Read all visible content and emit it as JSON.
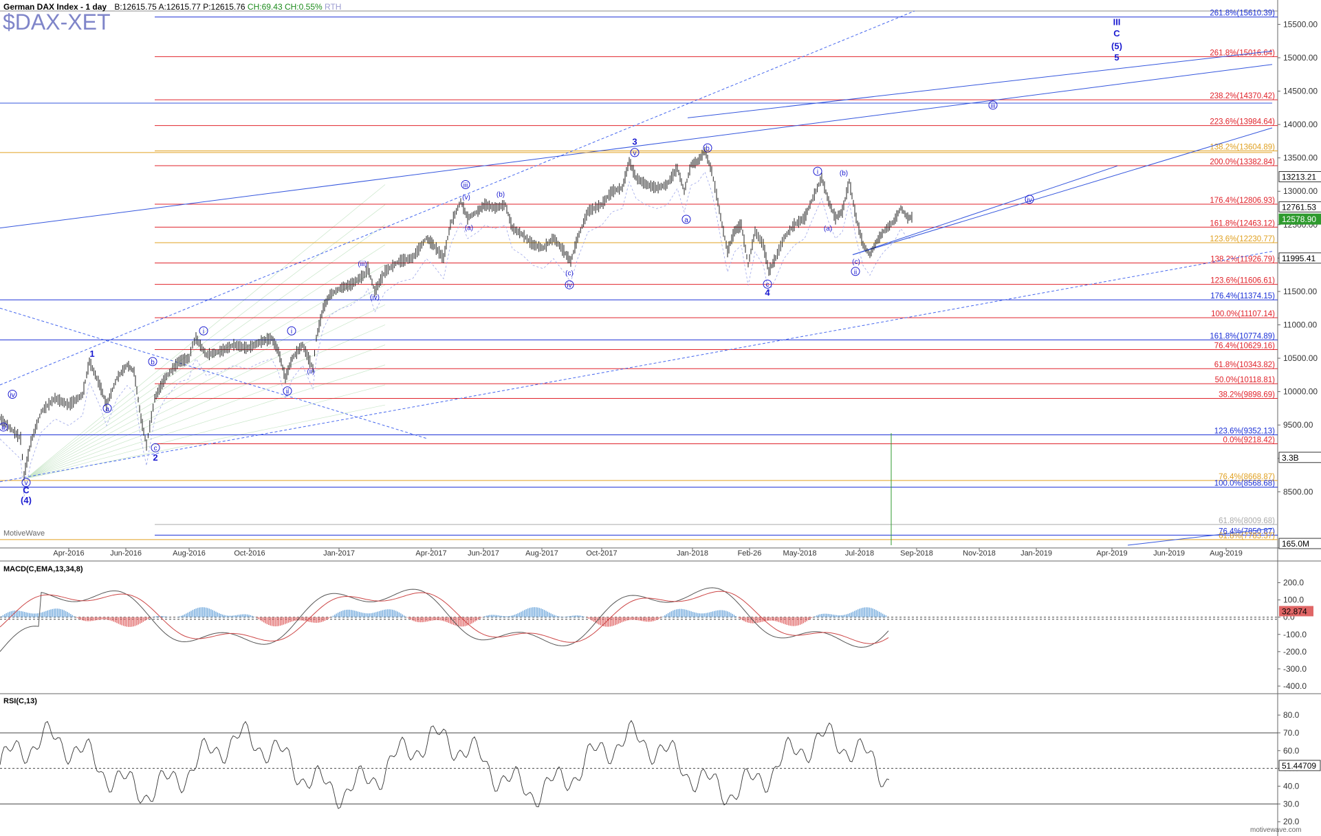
{
  "header": {
    "title": "German DAX Index - 1 day",
    "symbol": "$DAX-XET",
    "quote": {
      "bid": "B:12615.75",
      "ask": "A:12615.77",
      "price": "P:12615.76",
      "change": "CH:69.43",
      "change_pct": "CH:0.55%",
      "session": "RTH"
    },
    "watermark": "MotiveWave",
    "footer": "motivewave.com"
  },
  "colors": {
    "fib_red": "#e0222a",
    "fib_blue": "#1a2fd6",
    "fib_orange": "#e0a020",
    "fib_gray": "#aaaaaa",
    "wave_label": "#1a1ad0",
    "price_bar": "#222222",
    "macd_pos": "#6fa8dc",
    "macd_neg": "#e06666",
    "volume": "#2e9a2e"
  },
  "chart_data": [
    {
      "type": "line",
      "name": "price",
      "title": "German DAX Index - 1 day",
      "x_axis_labels": [
        "Apr-2016",
        "Jun-2016",
        "Aug-2016",
        "Oct-2016",
        "Jan-2017",
        "Apr-2017",
        "Jun-2017",
        "Aug-2017",
        "Oct-2017",
        "Jan-2018",
        "Feb-26",
        "May-2018",
        "Jul-2018",
        "Sep-2018",
        "Nov-2018",
        "Jan-2019",
        "Apr-2019",
        "Jun-2019",
        "Aug-2019"
      ],
      "y_ticks": [
        8500,
        9000,
        9500,
        10000,
        10500,
        11000,
        11500,
        12000,
        12500,
        13000,
        13500,
        14000,
        14500,
        15000,
        15500
      ],
      "y_tick_labels": [
        "8500.00",
        "9000.00",
        "9500.00",
        "10000.00",
        "10500.00",
        "11000.00",
        "11500.00",
        "12000.00",
        "12500.00",
        "13000.00",
        "13500.00",
        "14000.00",
        "14500.00",
        "15000.00",
        "15500.00"
      ],
      "ylim": [
        7700,
        15700
      ],
      "price_path": [
        [
          0,
          9600
        ],
        [
          30,
          9300
        ],
        [
          35,
          8740
        ],
        [
          45,
          9250
        ],
        [
          60,
          9700
        ],
        [
          80,
          9900
        ],
        [
          100,
          9800
        ],
        [
          120,
          9950
        ],
        [
          130,
          10450
        ],
        [
          145,
          10100
        ],
        [
          155,
          9800
        ],
        [
          170,
          10200
        ],
        [
          185,
          10400
        ],
        [
          195,
          10300
        ],
        [
          205,
          9600
        ],
        [
          213,
          9200
        ],
        [
          225,
          9900
        ],
        [
          240,
          10200
        ],
        [
          260,
          10450
        ],
        [
          275,
          10500
        ],
        [
          280,
          10700
        ],
        [
          285,
          10800
        ],
        [
          300,
          10550
        ],
        [
          320,
          10600
        ],
        [
          340,
          10700
        ],
        [
          360,
          10650
        ],
        [
          380,
          10750
        ],
        [
          395,
          10800
        ],
        [
          405,
          10600
        ],
        [
          415,
          10200
        ],
        [
          425,
          10500
        ],
        [
          440,
          10700
        ],
        [
          455,
          10350
        ],
        [
          460,
          10800
        ],
        [
          470,
          11250
        ],
        [
          480,
          11450
        ],
        [
          495,
          11550
        ],
        [
          510,
          11600
        ],
        [
          530,
          11750
        ],
        [
          535,
          11850
        ],
        [
          545,
          11500
        ],
        [
          560,
          11800
        ],
        [
          580,
          11950
        ],
        [
          600,
          12000
        ],
        [
          620,
          12300
        ],
        [
          630,
          12200
        ],
        [
          645,
          12000
        ],
        [
          655,
          12500
        ],
        [
          670,
          12850
        ],
        [
          680,
          12600
        ],
        [
          695,
          12700
        ],
        [
          705,
          12800
        ],
        [
          720,
          12750
        ],
        [
          735,
          12800
        ],
        [
          745,
          12450
        ],
        [
          760,
          12350
        ],
        [
          775,
          12200
        ],
        [
          790,
          12150
        ],
        [
          805,
          12300
        ],
        [
          820,
          12100
        ],
        [
          830,
          11950
        ],
        [
          840,
          12300
        ],
        [
          855,
          12700
        ],
        [
          875,
          12800
        ],
        [
          890,
          13000
        ],
        [
          905,
          13050
        ],
        [
          915,
          13450
        ],
        [
          925,
          13200
        ],
        [
          940,
          13100
        ],
        [
          955,
          13050
        ],
        [
          970,
          13100
        ],
        [
          985,
          13350
        ],
        [
          995,
          13000
        ],
        [
          1005,
          13400
        ],
        [
          1015,
          13450
        ],
        [
          1025,
          13600
        ],
        [
          1035,
          13300
        ],
        [
          1042,
          12950
        ],
        [
          1050,
          12500
        ],
        [
          1058,
          12100
        ],
        [
          1068,
          12400
        ],
        [
          1078,
          12500
        ],
        [
          1088,
          11900
        ],
        [
          1098,
          12400
        ],
        [
          1110,
          12200
        ],
        [
          1118,
          11800
        ],
        [
          1128,
          12000
        ],
        [
          1140,
          12300
        ],
        [
          1155,
          12500
        ],
        [
          1170,
          12600
        ],
        [
          1180,
          12850
        ],
        [
          1195,
          13200
        ],
        [
          1205,
          12850
        ],
        [
          1215,
          12600
        ],
        [
          1225,
          12700
        ],
        [
          1235,
          13150
        ],
        [
          1245,
          12600
        ],
        [
          1255,
          12200
        ],
        [
          1265,
          12050
        ],
        [
          1275,
          12250
        ],
        [
          1285,
          12400
        ],
        [
          1300,
          12550
        ],
        [
          1310,
          12750
        ],
        [
          1320,
          12600
        ],
        [
          1328,
          12615.76
        ]
      ],
      "fib_levels": [
        {
          "label": "261.8%(15610.39)",
          "value": 15610.39,
          "color": "blue"
        },
        {
          "label": "261.8%(15016.64)",
          "value": 15016.64,
          "color": "red"
        },
        {
          "label": "238.2%(14370.42)",
          "value": 14370.42,
          "color": "red"
        },
        {
          "label": "223.6%(13984.64)",
          "value": 13984.64,
          "color": "red"
        },
        {
          "label": "138.2%(13604.89)",
          "value": 13604.89,
          "color": "orange"
        },
        {
          "label": "200.0%(13382.84)",
          "value": 13382.84,
          "color": "red"
        },
        {
          "label": "176.4%(12806.93)",
          "value": 12806.93,
          "color": "red"
        },
        {
          "label": "161.8%(12463.12)",
          "value": 12463.12,
          "color": "red"
        },
        {
          "label": "123.6%(12230.77)",
          "value": 12230.77,
          "color": "orange"
        },
        {
          "label": "138.2%(11926.79)",
          "value": 11926.79,
          "color": "red"
        },
        {
          "label": "123.6%(11606.61)",
          "value": 11606.61,
          "color": "red"
        },
        {
          "label": "176.4%(11374.15)",
          "value": 11374.15,
          "color": "blue"
        },
        {
          "label": "100.0%(11107.14)",
          "value": 11107.14,
          "color": "red"
        },
        {
          "label": "161.8%(10774.89)",
          "value": 10774.89,
          "color": "blue"
        },
        {
          "label": "76.4%(10629.16)",
          "value": 10629.16,
          "color": "red"
        },
        {
          "label": "61.8%(10343.82)",
          "value": 10343.82,
          "color": "red"
        },
        {
          "label": "50.0%(10118.81)",
          "value": 10118.81,
          "color": "red"
        },
        {
          "label": "38.2%(9898.69)",
          "value": 9898.69,
          "color": "red"
        },
        {
          "label": "123.6%(9352.13)",
          "value": 9352.13,
          "color": "blue"
        },
        {
          "label": "0.0%(9218.42)",
          "value": 9218.42,
          "color": "red"
        },
        {
          "label": "76.4%(8668.87)",
          "value": 8668.87,
          "color": "orange"
        },
        {
          "label": "100.0%(8568.68)",
          "value": 8568.68,
          "color": "blue"
        },
        {
          "label": "61.8%(8009.68)",
          "value": 8009.68,
          "color": "gray"
        },
        {
          "label": "76.4%(7850.87)",
          "value": 7850.87,
          "color": "blue"
        },
        {
          "label": "61.8%(7783.37)",
          "value": 7783.37,
          "color": "orange"
        }
      ],
      "price_tags": [
        {
          "label": "13213.21",
          "value": 13213.21,
          "style": "outline"
        },
        {
          "label": "12761.53",
          "value": 12761.53,
          "style": "outline"
        },
        {
          "label": "12578.90",
          "value": 12578.9,
          "style": "green"
        },
        {
          "label": "11995.41",
          "value": 11995.41,
          "style": "outline"
        },
        {
          "label": "3.3B",
          "value": 9010,
          "style": "outline"
        },
        {
          "label": "165.0M",
          "value": 7720,
          "style": "outline"
        }
      ],
      "wave_labels": [
        {
          "text": "ⅲ",
          "x": 5,
          "y": 9470
        },
        {
          "text": "ⅳ",
          "x": 18,
          "y": 9960
        },
        {
          "text": "v",
          "x": 38,
          "y": 8640
        },
        {
          "text": "C",
          "x": 38,
          "y": 8520,
          "bold": true
        },
        {
          "text": "(4)",
          "x": 38,
          "y": 8370,
          "bold": true
        },
        {
          "text": "1",
          "x": 134,
          "y": 10560,
          "bold": true
        },
        {
          "text": "a",
          "x": 156,
          "y": 9750
        },
        {
          "text": "b",
          "x": 222,
          "y": 10450
        },
        {
          "text": "c",
          "x": 226,
          "y": 9160
        },
        {
          "text": "2",
          "x": 226,
          "y": 9010,
          "bold": true
        },
        {
          "text": "i",
          "x": 296,
          "y": 10910
        },
        {
          "text": "i",
          "x": 424,
          "y": 10910
        },
        {
          "text": "ii",
          "x": 418,
          "y": 10010
        },
        {
          "text": "(ii)",
          "x": 452,
          "y": 10310
        },
        {
          "text": "(iii)",
          "x": 527,
          "y": 11920
        },
        {
          "text": "(iv)",
          "x": 545,
          "y": 11420
        },
        {
          "text": "iii",
          "x": 677,
          "y": 13100
        },
        {
          "text": "(v)",
          "x": 678,
          "y": 12920
        },
        {
          "text": "(a)",
          "x": 682,
          "y": 12460
        },
        {
          "text": "(b)",
          "x": 728,
          "y": 12960
        },
        {
          "text": "(c)",
          "x": 828,
          "y": 11780
        },
        {
          "text": "iv",
          "x": 828,
          "y": 11600
        },
        {
          "text": "3",
          "x": 923,
          "y": 13740,
          "bold": true
        },
        {
          "text": "v",
          "x": 923,
          "y": 13580
        },
        {
          "text": "a",
          "x": 998,
          "y": 12580
        },
        {
          "text": "b",
          "x": 1029,
          "y": 13650
        },
        {
          "text": "c",
          "x": 1116,
          "y": 11610
        },
        {
          "text": "4",
          "x": 1116,
          "y": 11480,
          "bold": true
        },
        {
          "text": "i",
          "x": 1189,
          "y": 13300
        },
        {
          "text": "(b)",
          "x": 1227,
          "y": 13280
        },
        {
          "text": "(a)",
          "x": 1204,
          "y": 12450
        },
        {
          "text": "(c)",
          "x": 1245,
          "y": 11950
        },
        {
          "text": "ii",
          "x": 1244,
          "y": 11800
        },
        {
          "text": "iii",
          "x": 1444,
          "y": 14290
        },
        {
          "text": "iv",
          "x": 1497,
          "y": 12880
        },
        {
          "text": "III",
          "x": 1624,
          "y": 15530,
          "bold": true
        },
        {
          "text": "C",
          "x": 1624,
          "y": 15360,
          "bold": true
        },
        {
          "text": "(5)",
          "x": 1624,
          "y": 15170,
          "bold": true
        },
        {
          "text": "5",
          "x": 1624,
          "y": 15000,
          "bold": true
        }
      ]
    },
    {
      "type": "line",
      "name": "MACD",
      "title": "MACD(C,EMA,13,34,8)",
      "y_ticks": [
        200,
        100,
        0,
        -100,
        -200,
        -300,
        -400
      ],
      "y_tick_labels": [
        "200.0",
        "100.0",
        "0.0",
        "-100.0",
        "-200.0",
        "-300.0",
        "-400.0"
      ],
      "ylim": [
        -440,
        270
      ],
      "current_value_label": "32.874",
      "current_value": 32.874
    },
    {
      "type": "line",
      "name": "RSI",
      "title": "RSI(C,13)",
      "y_ticks": [
        80,
        70,
        60,
        50,
        40,
        30,
        20
      ],
      "y_tick_labels": [
        "80.0",
        "70.0",
        "60.0",
        "50.0",
        "40.0",
        "30.0",
        "20.0"
      ],
      "ylim": [
        17,
        87
      ],
      "reference_lines": [
        70,
        50,
        30
      ],
      "current_value_label": "51.44709",
      "current_value": 51.44709
    }
  ]
}
